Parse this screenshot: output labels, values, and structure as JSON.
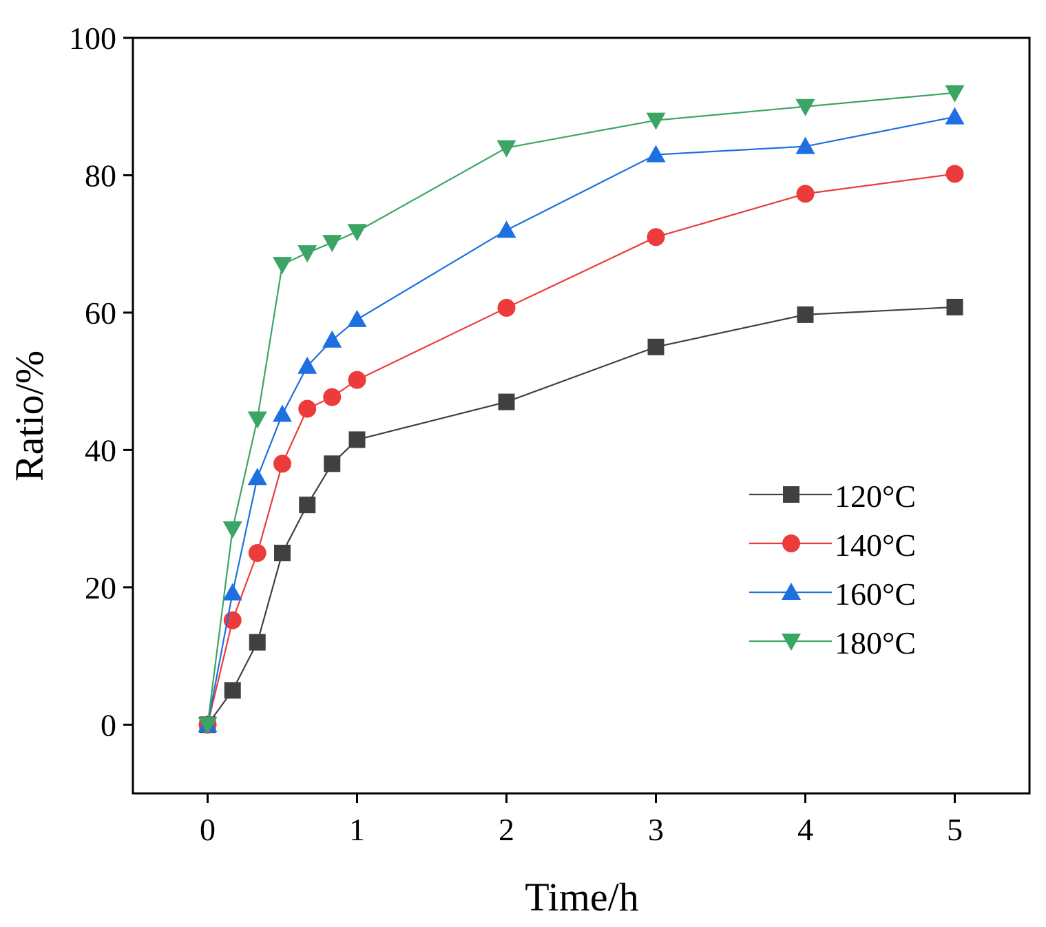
{
  "chart_data": {
    "type": "line",
    "title": "",
    "xlabel": "Time/h",
    "ylabel": "Ratio/%",
    "xlim": [
      -0.5,
      5.5
    ],
    "ylim": [
      -10,
      100
    ],
    "xticks": [
      0,
      1,
      2,
      3,
      4,
      5
    ],
    "yticks": [
      0,
      20,
      40,
      60,
      80,
      100
    ],
    "grid": false,
    "legend_position": "right, lower-middle",
    "series": [
      {
        "name": "120°C",
        "color": "#404040",
        "marker": "square",
        "x": [
          0,
          0.167,
          0.333,
          0.5,
          0.667,
          0.833,
          1,
          2,
          3,
          4,
          5
        ],
        "y": [
          0,
          5,
          12,
          25,
          32,
          38,
          41.5,
          47,
          55,
          59.7,
          60.8
        ]
      },
      {
        "name": "140°C",
        "color": "#ec3b3b",
        "marker": "circle",
        "x": [
          0,
          0.167,
          0.333,
          0.5,
          0.667,
          0.833,
          1,
          2,
          3,
          4,
          5
        ],
        "y": [
          0,
          15.2,
          25,
          38,
          46,
          47.7,
          50.2,
          60.7,
          71,
          77.3,
          80.2
        ]
      },
      {
        "name": "160°C",
        "color": "#1e6fe0",
        "marker": "triangle-up",
        "x": [
          0,
          0.167,
          0.333,
          0.5,
          0.667,
          0.833,
          1,
          2,
          3,
          4,
          5
        ],
        "y": [
          0,
          19.2,
          36,
          45.2,
          52.2,
          56,
          59,
          72,
          83,
          84.2,
          88.5
        ]
      },
      {
        "name": "180°C",
        "color": "#3aa564",
        "marker": "triangle-down",
        "x": [
          0,
          0.167,
          0.333,
          0.5,
          0.667,
          0.833,
          1,
          2,
          3,
          4,
          5
        ],
        "y": [
          0,
          28.5,
          44.5,
          67,
          68.7,
          70.2,
          71.8,
          84,
          88,
          90,
          92
        ]
      }
    ]
  }
}
